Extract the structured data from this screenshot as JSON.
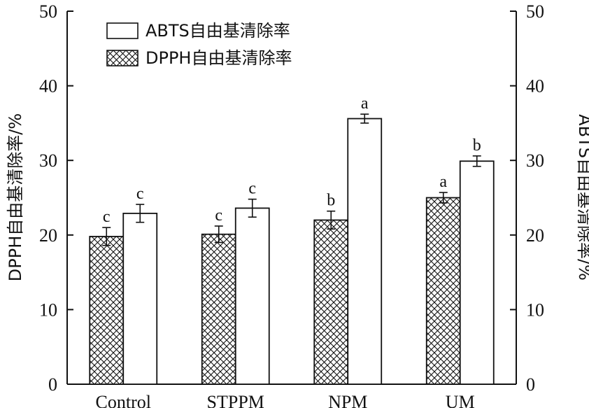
{
  "chart_data": {
    "type": "bar",
    "categories": [
      "Control",
      "STPPM",
      "NPM",
      "UM"
    ],
    "series": [
      {
        "name": "DPPH自由基清除率",
        "axis": "left",
        "pattern": "crosshatch",
        "values": [
          19.8,
          20.1,
          22.0,
          25.0
        ],
        "errors": [
          1.2,
          1.1,
          1.2,
          0.7
        ],
        "letters": [
          "c",
          "c",
          "b",
          "a"
        ]
      },
      {
        "name": "ABTS自由基清除率",
        "axis": "right",
        "pattern": "none",
        "values": [
          22.9,
          23.6,
          35.6,
          29.9
        ],
        "errors": [
          1.2,
          1.2,
          0.6,
          0.7
        ],
        "letters": [
          "c",
          "c",
          "a",
          "b"
        ]
      }
    ],
    "ylabel": "DPPH自由基清除率/%",
    "y2label": "ABTS自由基清除率/%",
    "ylim": [
      0,
      50
    ],
    "y2lim": [
      0,
      50
    ],
    "yticks": [
      "0",
      "10",
      "20",
      "30",
      "40",
      "50"
    ],
    "y2ticks": [
      "0",
      "10",
      "20",
      "30",
      "40",
      "50"
    ],
    "legend_position": "top-left",
    "grid": false
  }
}
